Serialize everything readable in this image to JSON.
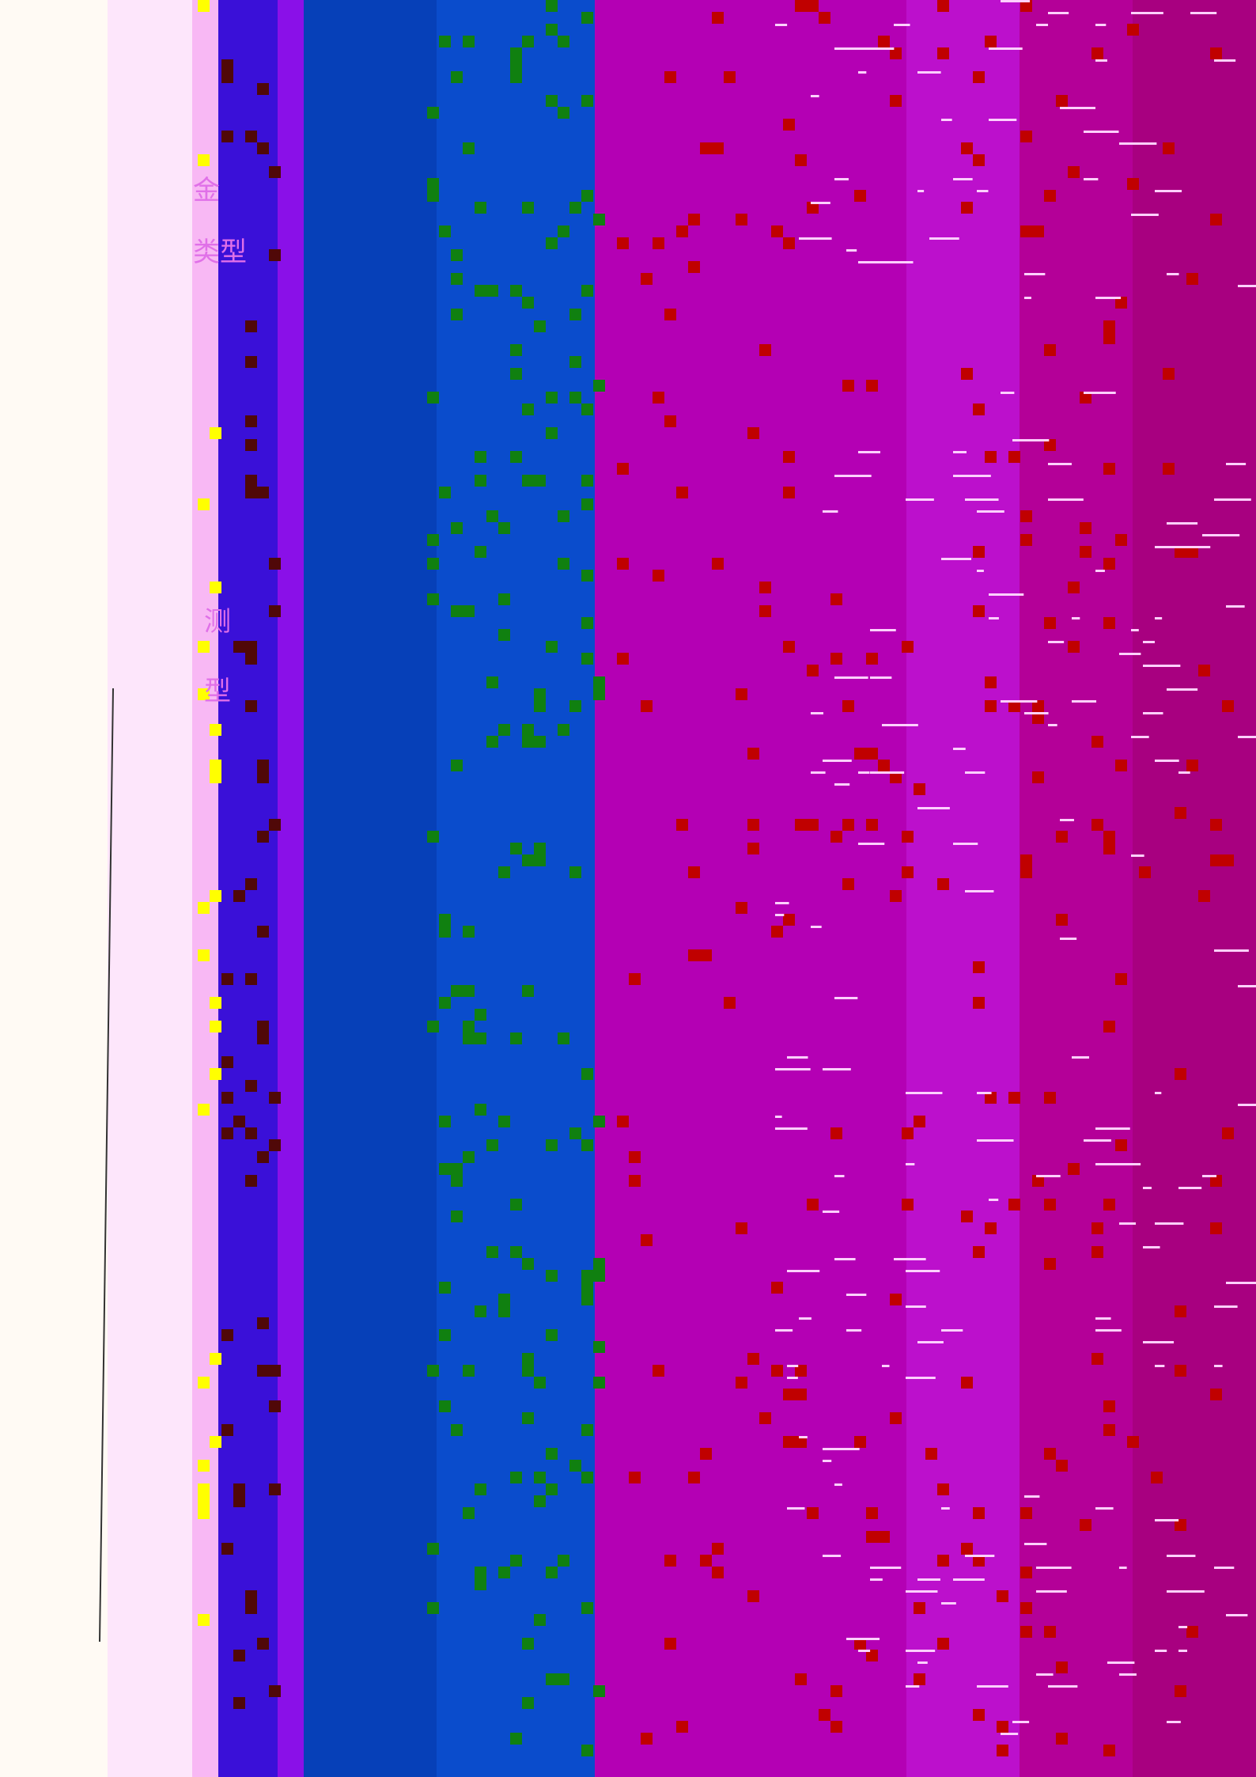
{
  "fragments": [
    "金",
    "类型",
    "测",
    "型"
  ]
}
